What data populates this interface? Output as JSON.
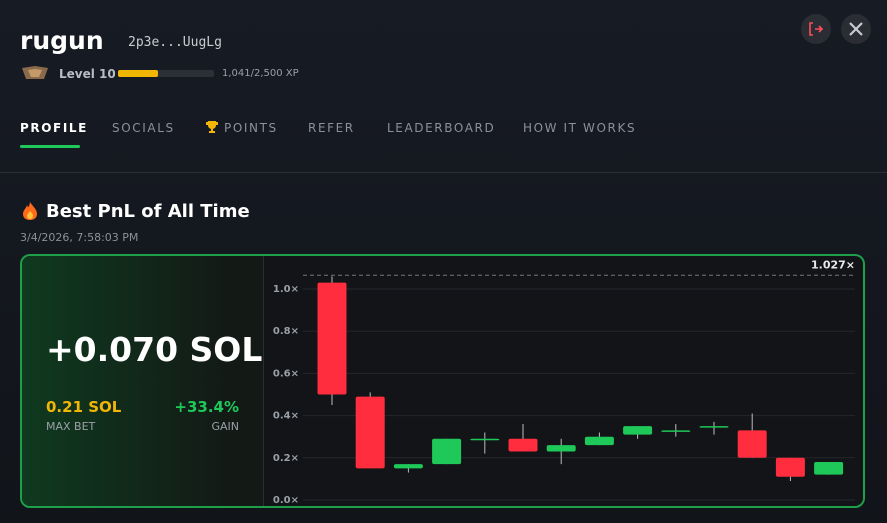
{
  "header": {
    "username": "rugun",
    "address": "2p3e...UugLg",
    "level": "Level 10",
    "xp_current": 1041,
    "xp_total": 2500,
    "xp_label": "1,041/2,500 XP"
  },
  "tabs": [
    "PROFILE",
    "SOCIALS",
    "POINTS",
    "REFER",
    "LEADERBOARD",
    "HOW IT WORKS"
  ],
  "section": {
    "title": "Best PnL of All Time",
    "timestamp": "3/4/2026, 7:58:03 PM"
  },
  "card": {
    "pnl": "+0.070 SOL",
    "max_bet": "0.21 SOL",
    "max_bet_label": "MAX BET",
    "gain": "+33.4%",
    "gain_label": "GAIN"
  },
  "chart_data": {
    "type": "candlestick",
    "ylim": [
      0,
      1.1
    ],
    "yticks": [
      {
        "value": 0,
        "label": "0.0×"
      },
      {
        "value": 0.2,
        "label": "0.2×"
      },
      {
        "value": 0.4,
        "label": "0.4×"
      },
      {
        "value": 0.6,
        "label": "0.6×"
      },
      {
        "value": 0.8,
        "label": "0.8×"
      },
      {
        "value": 1,
        "label": "1.0×"
      }
    ],
    "reference_line": {
      "value": 1.027,
      "label": "1.027×"
    },
    "up_color": "#1ec95a",
    "down_color": "#ff2d3d",
    "grid": true,
    "candles": [
      {
        "open": 1.03,
        "high": 1.06,
        "low": 0.45,
        "close": 0.5
      },
      {
        "open": 0.49,
        "high": 0.51,
        "low": 0.15,
        "close": 0.15
      },
      {
        "open": 0.15,
        "high": 0.17,
        "low": 0.13,
        "close": 0.17
      },
      {
        "open": 0.17,
        "high": 0.29,
        "low": 0.17,
        "close": 0.29
      },
      {
        "open": 0.29,
        "high": 0.32,
        "low": 0.22,
        "close": 0.29
      },
      {
        "open": 0.29,
        "high": 0.36,
        "low": 0.23,
        "close": 0.23
      },
      {
        "open": 0.23,
        "high": 0.29,
        "low": 0.17,
        "close": 0.26
      },
      {
        "open": 0.26,
        "high": 0.32,
        "low": 0.26,
        "close": 0.3
      },
      {
        "open": 0.31,
        "high": 0.35,
        "low": 0.29,
        "close": 0.35
      },
      {
        "open": 0.33,
        "high": 0.36,
        "low": 0.3,
        "close": 0.33
      },
      {
        "open": 0.35,
        "high": 0.37,
        "low": 0.31,
        "close": 0.35
      },
      {
        "open": 0.33,
        "high": 0.41,
        "low": 0.2,
        "close": 0.2
      },
      {
        "open": 0.2,
        "high": 0.2,
        "low": 0.09,
        "close": 0.11
      },
      {
        "open": 0.12,
        "high": 0.18,
        "low": 0.12,
        "close": 0.18
      }
    ]
  }
}
